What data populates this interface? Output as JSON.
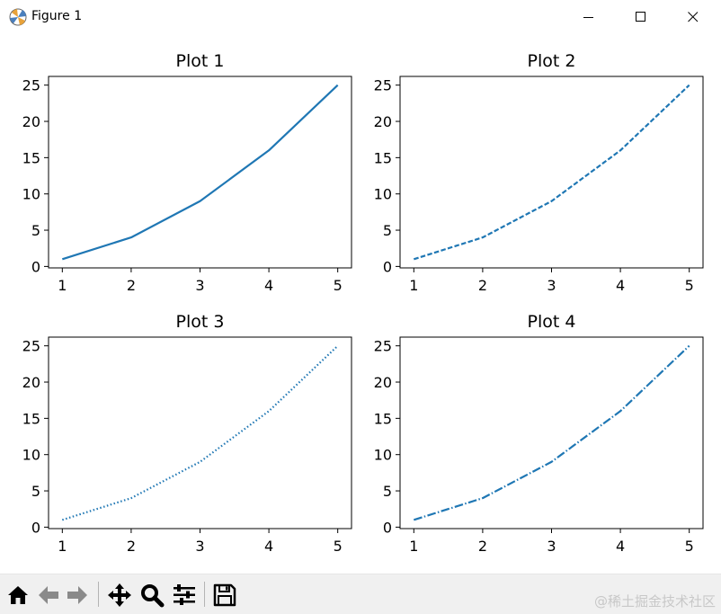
{
  "window": {
    "title": "Figure 1",
    "icons": {
      "app": "matplotlib-logo-icon",
      "minimize": "minimize-icon",
      "maximize": "maximize-icon",
      "close": "close-icon"
    }
  },
  "toolbar": {
    "buttons": [
      {
        "name": "home",
        "icon": "home-icon"
      },
      {
        "name": "back",
        "icon": "back-arrow-icon"
      },
      {
        "name": "forward",
        "icon": "forward-arrow-icon"
      },
      {
        "name": "pan",
        "icon": "move-arrows-icon"
      },
      {
        "name": "zoom",
        "icon": "magnifier-icon"
      },
      {
        "name": "configure-subplots",
        "icon": "sliders-icon"
      },
      {
        "name": "save",
        "icon": "floppy-disk-icon"
      }
    ],
    "watermark": "@稀土掘金技术社区"
  },
  "colors": {
    "line": "#1f77b4",
    "axes": "#000000",
    "toolbar_bg": "#f0f0f0"
  },
  "chart_data": [
    {
      "type": "line",
      "title": "Plot 1",
      "linestyle": "solid",
      "x": [
        1,
        2,
        3,
        4,
        5
      ],
      "y": [
        1,
        4,
        9,
        16,
        25
      ],
      "xticks": [
        "1",
        "2",
        "3",
        "4",
        "5"
      ],
      "yticks": [
        "0",
        "5",
        "10",
        "15",
        "20",
        "25"
      ],
      "xlim": [
        0.8,
        5.2
      ],
      "ylim": [
        -0.2,
        26.2
      ],
      "grid": false
    },
    {
      "type": "line",
      "title": "Plot 2",
      "linestyle": "dashed",
      "x": [
        1,
        2,
        3,
        4,
        5
      ],
      "y": [
        1,
        4,
        9,
        16,
        25
      ],
      "xticks": [
        "1",
        "2",
        "3",
        "4",
        "5"
      ],
      "yticks": [
        "0",
        "5",
        "10",
        "15",
        "20",
        "25"
      ],
      "xlim": [
        0.8,
        5.2
      ],
      "ylim": [
        -0.2,
        26.2
      ],
      "grid": false
    },
    {
      "type": "line",
      "title": "Plot 3",
      "linestyle": "dotted",
      "x": [
        1,
        2,
        3,
        4,
        5
      ],
      "y": [
        1,
        4,
        9,
        16,
        25
      ],
      "xticks": [
        "1",
        "2",
        "3",
        "4",
        "5"
      ],
      "yticks": [
        "0",
        "5",
        "10",
        "15",
        "20",
        "25"
      ],
      "xlim": [
        0.8,
        5.2
      ],
      "ylim": [
        -0.2,
        26.2
      ],
      "grid": false
    },
    {
      "type": "line",
      "title": "Plot 4",
      "linestyle": "dashdot",
      "x": [
        1,
        2,
        3,
        4,
        5
      ],
      "y": [
        1,
        4,
        9,
        16,
        25
      ],
      "xticks": [
        "1",
        "2",
        "3",
        "4",
        "5"
      ],
      "yticks": [
        "0",
        "5",
        "10",
        "15",
        "20",
        "25"
      ],
      "xlim": [
        0.8,
        5.2
      ],
      "ylim": [
        -0.2,
        26.2
      ],
      "grid": false
    }
  ]
}
